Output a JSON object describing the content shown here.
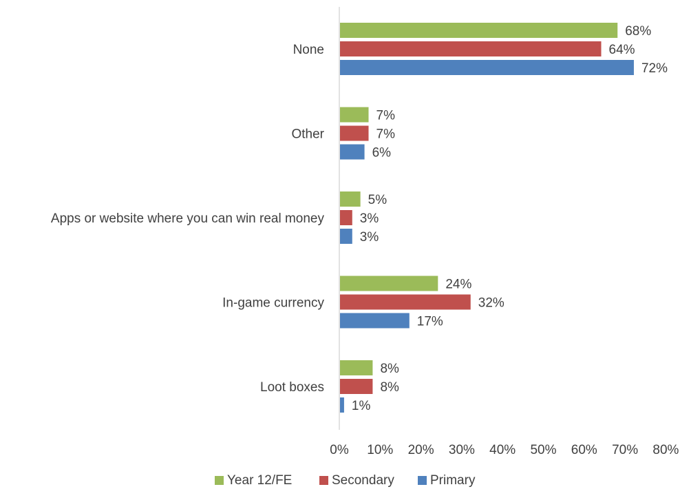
{
  "chart_data": {
    "type": "bar",
    "orientation": "horizontal",
    "title": "",
    "xlabel": "",
    "ylabel": "",
    "xlim": [
      0,
      80
    ],
    "ticks": [
      "0%",
      "10%",
      "20%",
      "30%",
      "40%",
      "50%",
      "60%",
      "70%",
      "80%"
    ],
    "grid": false,
    "legend_position": "bottom",
    "categories": [
      "None",
      "Other",
      "Apps or website where you can win real money",
      "In-game currency",
      "Loot boxes"
    ],
    "series": [
      {
        "name": "Year 12/FE",
        "color": "#9BBB59",
        "values": [
          68,
          7,
          5,
          24,
          8
        ]
      },
      {
        "name": "Secondary",
        "color": "#C0504D",
        "values": [
          64,
          7,
          3,
          32,
          8
        ]
      },
      {
        "name": "Primary",
        "color": "#4F81BD",
        "values": [
          72,
          6,
          3,
          17,
          1
        ]
      }
    ]
  }
}
